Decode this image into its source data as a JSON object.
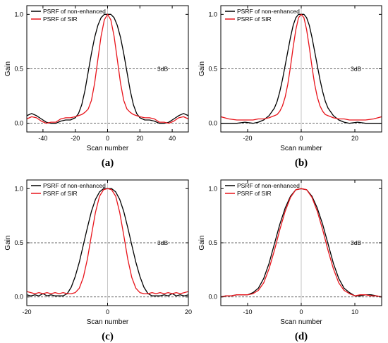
{
  "colors": {
    "non_enhanced": "#000000",
    "sir": "#e8141b"
  },
  "chart_data": [
    {
      "type": "line",
      "panel_label": "(a)",
      "xlabel": "Scan number",
      "ylabel": "Gain",
      "xlim": [
        -50,
        50
      ],
      "ylim": [
        -0.08,
        1.08
      ],
      "xticks": [
        -40,
        -20,
        0,
        20,
        40
      ],
      "yticks": [
        "0.0",
        "0.5",
        "1.0"
      ],
      "ytick_values": [
        0.0,
        0.5,
        1.0
      ],
      "ref_label": "3dB",
      "ref_y": 0.5,
      "legend_position": "top-left",
      "series": [
        {
          "name": "PSRF of non-enhanced",
          "color": "#000000",
          "x": [
            -50,
            -47,
            -44,
            -41,
            -38,
            -35,
            -32,
            -29,
            -26,
            -23,
            -20,
            -18,
            -16,
            -14,
            -12,
            -10,
            -8,
            -6,
            -4,
            -2,
            0,
            2,
            4,
            6,
            8,
            10,
            12,
            14,
            16,
            18,
            20,
            23,
            26,
            29,
            32,
            35,
            38,
            41,
            44,
            47,
            50
          ],
          "y": [
            0.07,
            0.09,
            0.07,
            0.04,
            0.01,
            0.0,
            0.0,
            0.02,
            0.03,
            0.03,
            0.05,
            0.09,
            0.17,
            0.3,
            0.47,
            0.64,
            0.79,
            0.9,
            0.97,
            1.0,
            1.0,
            1.0,
            0.97,
            0.9,
            0.79,
            0.64,
            0.47,
            0.3,
            0.17,
            0.09,
            0.05,
            0.03,
            0.03,
            0.02,
            0.0,
            0.0,
            0.01,
            0.04,
            0.07,
            0.09,
            0.07
          ]
        },
        {
          "name": "PSRF of SIR",
          "color": "#e8141b",
          "x": [
            -50,
            -47,
            -44,
            -41,
            -38,
            -35,
            -32,
            -29,
            -26,
            -23,
            -20,
            -18,
            -16,
            -14,
            -12,
            -10,
            -8,
            -6,
            -4,
            -2,
            0,
            2,
            4,
            6,
            8,
            10,
            12,
            14,
            16,
            18,
            20,
            23,
            26,
            29,
            32,
            35,
            38,
            41,
            44,
            47,
            50
          ],
          "y": [
            0.04,
            0.06,
            0.05,
            0.02,
            0.0,
            0.01,
            0.01,
            0.04,
            0.05,
            0.05,
            0.06,
            0.07,
            0.08,
            0.1,
            0.13,
            0.21,
            0.37,
            0.59,
            0.8,
            0.95,
            1.0,
            0.95,
            0.8,
            0.59,
            0.37,
            0.21,
            0.13,
            0.1,
            0.08,
            0.07,
            0.06,
            0.05,
            0.05,
            0.04,
            0.01,
            0.01,
            0.0,
            0.02,
            0.05,
            0.06,
            0.04
          ]
        }
      ]
    },
    {
      "type": "line",
      "panel_label": "(b)",
      "xlabel": "Scan number",
      "ylabel": "Gain",
      "xlim": [
        -30,
        30
      ],
      "ylim": [
        -0.08,
        1.08
      ],
      "xticks": [
        -20,
        0,
        20
      ],
      "yticks": [
        "0.0",
        "0.5",
        "1.0"
      ],
      "ytick_values": [
        0.0,
        0.5,
        1.0
      ],
      "ref_label": "3dB",
      "ref_y": 0.5,
      "legend_position": "top-left",
      "series": [
        {
          "name": "PSRF of non-enhanced",
          "color": "#000000",
          "x": [
            -30,
            -27,
            -24,
            -21,
            -18,
            -16,
            -14,
            -12,
            -10,
            -9,
            -8,
            -7,
            -6,
            -5,
            -4,
            -3,
            -2,
            -1,
            0,
            1,
            2,
            3,
            4,
            5,
            6,
            7,
            8,
            9,
            10,
            12,
            14,
            16,
            18,
            21,
            24,
            27,
            30
          ],
          "y": [
            0.0,
            0.0,
            0.0,
            0.01,
            0.0,
            0.01,
            0.03,
            0.07,
            0.14,
            0.2,
            0.29,
            0.4,
            0.53,
            0.66,
            0.79,
            0.9,
            0.97,
            1.0,
            1.0,
            1.0,
            0.97,
            0.9,
            0.79,
            0.66,
            0.53,
            0.4,
            0.29,
            0.2,
            0.14,
            0.07,
            0.03,
            0.01,
            0.0,
            0.01,
            0.0,
            0.0,
            0.0
          ]
        },
        {
          "name": "PSRF of SIR",
          "color": "#e8141b",
          "x": [
            -30,
            -27,
            -24,
            -21,
            -18,
            -16,
            -14,
            -12,
            -10,
            -9,
            -8,
            -7,
            -6,
            -5,
            -4,
            -3,
            -2,
            -1,
            0,
            1,
            2,
            3,
            4,
            5,
            6,
            7,
            8,
            9,
            10,
            12,
            14,
            16,
            18,
            21,
            24,
            27,
            30
          ],
          "y": [
            0.06,
            0.04,
            0.03,
            0.03,
            0.03,
            0.04,
            0.04,
            0.05,
            0.07,
            0.08,
            0.11,
            0.16,
            0.24,
            0.36,
            0.52,
            0.7,
            0.86,
            0.97,
            1.0,
            0.97,
            0.86,
            0.7,
            0.52,
            0.36,
            0.24,
            0.16,
            0.11,
            0.08,
            0.07,
            0.05,
            0.04,
            0.04,
            0.03,
            0.03,
            0.03,
            0.04,
            0.06
          ]
        }
      ]
    },
    {
      "type": "line",
      "panel_label": "(c)",
      "xlabel": "Scan number",
      "ylabel": "Gain",
      "xlim": [
        -20,
        20
      ],
      "ylim": [
        -0.08,
        1.08
      ],
      "xticks": [
        -20,
        0,
        20
      ],
      "yticks": [
        "0.0",
        "0.5",
        "1.0"
      ],
      "ytick_values": [
        0.0,
        0.5,
        1.0
      ],
      "ref_label": "3dB",
      "ref_y": 0.5,
      "legend_position": "top-left",
      "series": [
        {
          "name": "PSRF of non-enhanced",
          "color": "#000000",
          "x": [
            -20,
            -19,
            -18,
            -17,
            -16,
            -15,
            -14,
            -13,
            -12,
            -11,
            -10,
            -9,
            -8,
            -7,
            -6,
            -5,
            -4,
            -3,
            -2,
            -1,
            0,
            1,
            2,
            3,
            4,
            5,
            6,
            7,
            8,
            9,
            10,
            11,
            12,
            13,
            14,
            15,
            16,
            17,
            18,
            19,
            20
          ],
          "y": [
            0.02,
            0.01,
            0.02,
            0.01,
            0.03,
            0.01,
            0.02,
            0.01,
            0.01,
            0.01,
            0.03,
            0.09,
            0.19,
            0.32,
            0.48,
            0.64,
            0.79,
            0.9,
            0.97,
            1.0,
            1.0,
            1.0,
            0.97,
            0.9,
            0.79,
            0.64,
            0.48,
            0.32,
            0.19,
            0.09,
            0.03,
            0.01,
            0.01,
            0.01,
            0.02,
            0.01,
            0.03,
            0.01,
            0.02,
            0.01,
            0.02
          ]
        },
        {
          "name": "PSRF of SIR",
          "color": "#e8141b",
          "x": [
            -20,
            -19,
            -18,
            -17,
            -16,
            -15,
            -14,
            -13,
            -12,
            -11,
            -10,
            -9,
            -8,
            -7,
            -6,
            -5,
            -4,
            -3,
            -2,
            -1,
            0,
            1,
            2,
            3,
            4,
            5,
            6,
            7,
            8,
            9,
            10,
            11,
            12,
            13,
            14,
            15,
            16,
            17,
            18,
            19,
            20
          ],
          "y": [
            0.05,
            0.04,
            0.03,
            0.04,
            0.03,
            0.04,
            0.03,
            0.04,
            0.03,
            0.04,
            0.03,
            0.03,
            0.04,
            0.08,
            0.18,
            0.35,
            0.57,
            0.78,
            0.93,
            0.99,
            1.0,
            0.99,
            0.93,
            0.78,
            0.57,
            0.35,
            0.18,
            0.08,
            0.04,
            0.03,
            0.03,
            0.04,
            0.03,
            0.04,
            0.03,
            0.04,
            0.03,
            0.04,
            0.03,
            0.04,
            0.05
          ]
        }
      ]
    },
    {
      "type": "line",
      "panel_label": "(d)",
      "xlabel": "Scan number",
      "ylabel": "Gain",
      "xlim": [
        -15,
        15
      ],
      "ylim": [
        -0.08,
        1.08
      ],
      "xticks": [
        -10,
        0,
        10
      ],
      "yticks": [
        "0.0",
        "0.5",
        "1.0"
      ],
      "ytick_values": [
        0.0,
        0.5,
        1.0
      ],
      "ref_label": "3dB",
      "ref_y": 0.5,
      "legend_position": "top-left",
      "series": [
        {
          "name": "PSRF of non-enhanced",
          "color": "#000000",
          "x": [
            -15,
            -14,
            -13,
            -12,
            -11,
            -10,
            -9,
            -8,
            -7,
            -6,
            -5,
            -4,
            -3,
            -2,
            -1,
            0,
            1,
            2,
            3,
            4,
            5,
            6,
            7,
            8,
            9,
            10,
            11,
            12,
            13,
            14,
            15
          ],
          "y": [
            0.0,
            0.01,
            0.01,
            0.02,
            0.02,
            0.02,
            0.04,
            0.08,
            0.17,
            0.31,
            0.49,
            0.67,
            0.82,
            0.93,
            0.99,
            1.0,
            0.99,
            0.93,
            0.82,
            0.67,
            0.49,
            0.31,
            0.17,
            0.08,
            0.04,
            0.01,
            0.01,
            0.02,
            0.02,
            0.01,
            0.0
          ]
        },
        {
          "name": "PSRF of SIR",
          "color": "#e8141b",
          "x": [
            -15,
            -14,
            -13,
            -12,
            -11,
            -10,
            -9,
            -8,
            -7,
            -6,
            -5,
            -4,
            -3,
            -2,
            -1,
            0,
            1,
            2,
            3,
            4,
            5,
            6,
            7,
            8,
            9,
            10,
            11,
            12,
            13,
            14,
            15
          ],
          "y": [
            0.0,
            0.01,
            0.01,
            0.02,
            0.02,
            0.02,
            0.03,
            0.06,
            0.13,
            0.26,
            0.43,
            0.62,
            0.79,
            0.92,
            0.99,
            1.0,
            0.99,
            0.92,
            0.79,
            0.62,
            0.43,
            0.26,
            0.13,
            0.06,
            0.03,
            0.01,
            0.02,
            0.02,
            0.01,
            0.01,
            0.0
          ]
        }
      ]
    }
  ]
}
